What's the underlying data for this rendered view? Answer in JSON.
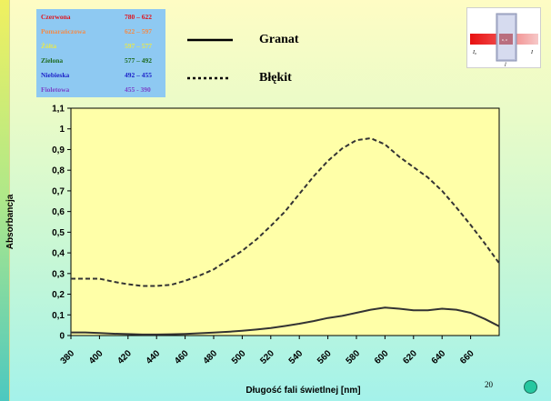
{
  "color_table": {
    "rows": [
      {
        "name": "Czerwona",
        "range": "780 – 622",
        "color": "#e0141e"
      },
      {
        "name": "Pomarańczowa",
        "range": "622 – 597",
        "color": "#f28c4a"
      },
      {
        "name": "Żółta",
        "range": "597 – 577",
        "color": "#e8e84c"
      },
      {
        "name": "Zielona",
        "range": "577 – 492",
        "color": "#1e6a1e"
      },
      {
        "name": "Niebieska",
        "range": "492 – 455",
        "color": "#1c22c8"
      },
      {
        "name": "Fioletowa",
        "range": "455 - 390",
        "color": "#7a44c8"
      }
    ],
    "background": "#8ec9f2"
  },
  "legend": {
    "granat": "Granat",
    "blekit": "Błękit"
  },
  "page_number": "20",
  "cuvette_labels": {
    "left": "I₀",
    "right": "I",
    "bottom": "l",
    "center": "c, ε"
  },
  "chart_data": {
    "type": "line",
    "title": "",
    "xlabel": "Długość fali świetlnej [nm]",
    "ylabel": "Absorbancja",
    "xlim": [
      380,
      680
    ],
    "ylim": [
      0,
      1.1
    ],
    "x_ticks": [
      380,
      400,
      420,
      440,
      460,
      480,
      500,
      520,
      540,
      560,
      580,
      600,
      620,
      640,
      660
    ],
    "y_ticks": [
      0,
      0.1,
      0.2,
      0.3,
      0.4,
      0.5,
      0.6,
      0.7,
      0.8,
      0.9,
      1,
      1.1
    ],
    "x_tick_labels": [
      "380",
      "400",
      "420",
      "440",
      "460",
      "480",
      "500",
      "520",
      "540",
      "560",
      "580",
      "600",
      "620",
      "640",
      "660"
    ],
    "y_tick_labels": [
      "0",
      "0,1",
      "0,2",
      "0,3",
      "0,4",
      "0,5",
      "0,6",
      "0,7",
      "0,8",
      "0,9",
      "1",
      "1,1"
    ],
    "grid": false,
    "legend_position": "top",
    "series": [
      {
        "name": "Granat",
        "style": "solid",
        "color": "#333333",
        "x": [
          380,
          390,
          400,
          410,
          420,
          430,
          440,
          450,
          460,
          470,
          480,
          490,
          500,
          510,
          520,
          530,
          540,
          550,
          560,
          570,
          580,
          590,
          600,
          610,
          620,
          630,
          640,
          650,
          660,
          670,
          680
        ],
        "y": [
          0.015,
          0.015,
          0.012,
          0.009,
          0.007,
          0.005,
          0.005,
          0.006,
          0.008,
          0.011,
          0.014,
          0.018,
          0.023,
          0.029,
          0.036,
          0.046,
          0.057,
          0.07,
          0.085,
          0.095,
          0.11,
          0.125,
          0.135,
          0.13,
          0.122,
          0.122,
          0.13,
          0.125,
          0.11,
          0.08,
          0.045
        ]
      },
      {
        "name": "Błękit",
        "style": "dashed",
        "color": "#333333",
        "x": [
          380,
          390,
          400,
          410,
          420,
          430,
          440,
          450,
          460,
          470,
          480,
          490,
          500,
          510,
          520,
          530,
          540,
          550,
          560,
          570,
          580,
          590,
          600,
          610,
          620,
          630,
          640,
          650,
          660,
          670,
          680
        ],
        "y": [
          0.275,
          0.275,
          0.275,
          0.26,
          0.248,
          0.24,
          0.24,
          0.245,
          0.265,
          0.29,
          0.32,
          0.365,
          0.41,
          0.465,
          0.53,
          0.6,
          0.685,
          0.77,
          0.845,
          0.905,
          0.945,
          0.955,
          0.925,
          0.865,
          0.815,
          0.765,
          0.7,
          0.62,
          0.535,
          0.445,
          0.35
        ]
      }
    ]
  }
}
